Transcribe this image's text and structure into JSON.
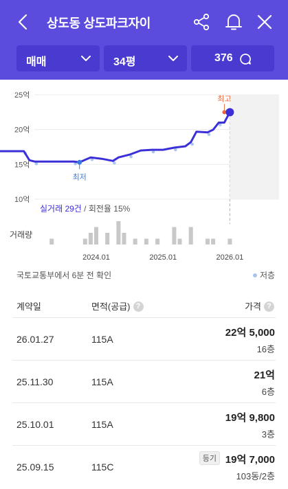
{
  "header": {
    "title": "상도동 상도파크자이",
    "filters": {
      "trade_type": "매매",
      "size": "34평",
      "comment_count": "376"
    },
    "brand_color": "#5b4cdd"
  },
  "chart_data": {
    "type": "line",
    "ylabel": "",
    "yticks": [
      "25억",
      "20억",
      "15억",
      "10억"
    ],
    "ylim": [
      10,
      25
    ],
    "y_unit": "억",
    "xticks": [
      "2024.01",
      "2025.01",
      "2026.01"
    ],
    "series": [
      {
        "values": [
          {
            "x": "2022.06",
            "y": 16.9
          },
          {
            "x": "2022.12",
            "y": 16.9
          },
          {
            "x": "2023.01",
            "y": 15.6
          },
          {
            "x": "2023.02",
            "y": 15.4
          },
          {
            "x": "2023.06",
            "y": 15.4
          },
          {
            "x": "2023.09",
            "y": 15.4
          },
          {
            "x": "2023.10",
            "y": 15.3
          },
          {
            "x": "2023.12",
            "y": 16.0
          },
          {
            "x": "2024.02",
            "y": 15.8
          },
          {
            "x": "2024.04",
            "y": 15.5
          },
          {
            "x": "2024.05",
            "y": 16.0
          },
          {
            "x": "2024.07",
            "y": 16.4
          },
          {
            "x": "2024.09",
            "y": 17.0
          },
          {
            "x": "2024.11",
            "y": 17.1
          },
          {
            "x": "2025.01",
            "y": 17.1
          },
          {
            "x": "2025.03",
            "y": 17.4
          },
          {
            "x": "2025.05",
            "y": 17.6
          },
          {
            "x": "2025.06",
            "y": 18.2
          },
          {
            "x": "2025.07",
            "y": 19.7
          },
          {
            "x": "2025.09",
            "y": 19.6
          },
          {
            "x": "2025.10",
            "y": 19.98
          },
          {
            "x": "2025.11",
            "y": 21.0
          },
          {
            "x": "2025.12",
            "y": 21.0
          },
          {
            "x": "2026.01",
            "y": 22.5
          }
        ]
      }
    ],
    "low_marker": {
      "label": "최저",
      "x": "2023.10",
      "y": 15.3
    },
    "high_marker": {
      "label": "최고",
      "x": "2026.01",
      "y": 22.5
    },
    "line_color": "#3b2fd8",
    "summary_link": "실거래 29건",
    "summary_rest": " / 회전율 15%",
    "volume_label": "거래량",
    "volume": [
      {
        "x": "2023.05",
        "v": 1
      },
      {
        "x": "2023.11",
        "v": 1
      },
      {
        "x": "2023.12",
        "v": 2
      },
      {
        "x": "2024.01",
        "v": 3
      },
      {
        "x": "2024.03",
        "v": 2
      },
      {
        "x": "2024.05",
        "v": 4
      },
      {
        "x": "2024.06",
        "v": 2
      },
      {
        "x": "2024.08",
        "v": 1
      },
      {
        "x": "2024.10",
        "v": 1
      },
      {
        "x": "2024.12",
        "v": 1
      },
      {
        "x": "2025.03",
        "v": 3
      },
      {
        "x": "2025.04",
        "v": 1
      },
      {
        "x": "2025.06",
        "v": 3
      },
      {
        "x": "2025.09",
        "v": 1
      },
      {
        "x": "2025.10",
        "v": 1
      },
      {
        "x": "2026.01",
        "v": 1
      }
    ],
    "scatter_color": "#a9c5ee"
  },
  "updated_text": "국토교통부에서 6분 전 확인",
  "legend_low_floor": "저층",
  "table": {
    "headers": [
      "계약일",
      "면적(공급)",
      "가격"
    ],
    "rows": [
      {
        "date": "26.01.27",
        "area": "115A",
        "price": "22억 5,000",
        "floor": "16층",
        "badge": ""
      },
      {
        "date": "25.11.30",
        "area": "115A",
        "price": "21억",
        "floor": "6층",
        "badge": ""
      },
      {
        "date": "25.10.01",
        "area": "115A",
        "price": "19억 9,800",
        "floor": "3층",
        "badge": ""
      },
      {
        "date": "25.09.15",
        "area": "115C",
        "price": "19억 7,000",
        "floor": "103동/2층",
        "badge": "등기"
      }
    ]
  }
}
